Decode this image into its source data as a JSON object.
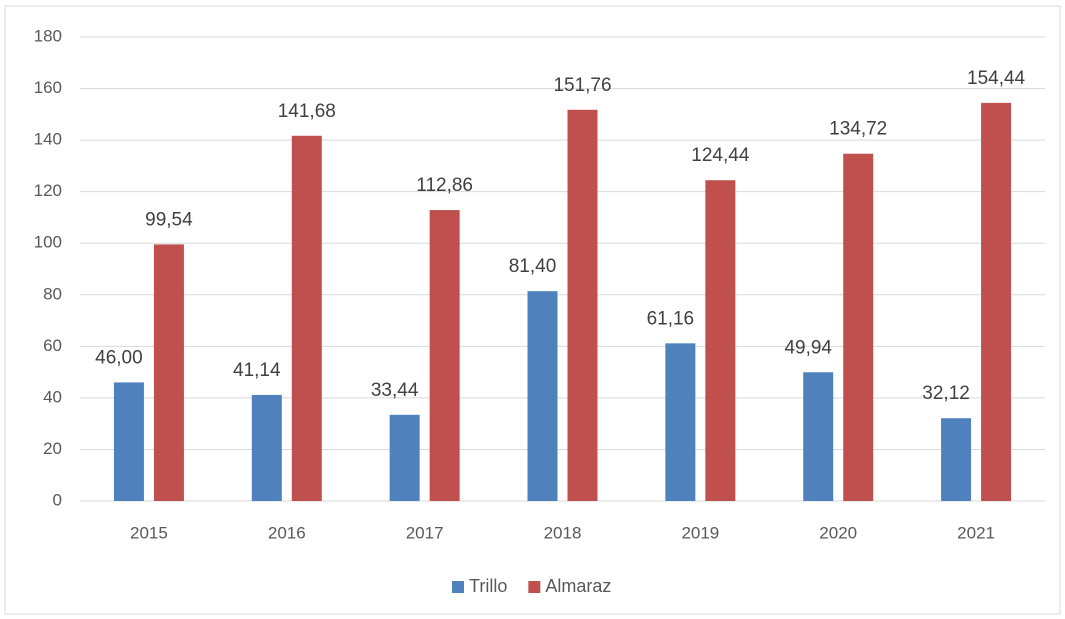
{
  "chart_data": {
    "type": "bar",
    "categories": [
      "2015",
      "2016",
      "2017",
      "2018",
      "2019",
      "2020",
      "2021"
    ],
    "series": [
      {
        "name": "Trillo",
        "color": "#4f81bd",
        "values": [
          46.0,
          41.14,
          33.44,
          81.4,
          61.16,
          49.94,
          32.12
        ],
        "value_labels": [
          "46,00",
          "41,14",
          "33,44",
          "81,40",
          "61,16",
          "49,94",
          "32,12"
        ]
      },
      {
        "name": "Almaraz",
        "color": "#c0504d",
        "values": [
          99.54,
          141.68,
          112.86,
          151.76,
          124.44,
          134.72,
          154.44
        ],
        "value_labels": [
          "99,54",
          "141,68",
          "112,86",
          "151,76",
          "124,44",
          "134,72",
          "154,44"
        ]
      }
    ],
    "ylim": [
      0,
      180
    ],
    "yticks": [
      0,
      20,
      40,
      60,
      80,
      100,
      120,
      140,
      160,
      180
    ],
    "grid": true,
    "legend": "bottom"
  }
}
